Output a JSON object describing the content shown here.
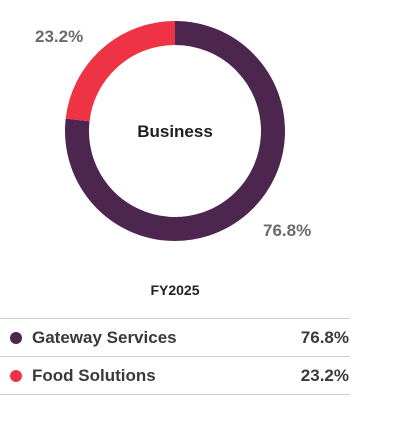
{
  "chart_data": {
    "type": "pie",
    "center_label": "Business",
    "caption": "FY2025",
    "series": [
      {
        "name": "Gateway Services",
        "value": 76.8,
        "label": "76.8%",
        "color": "#4d2650"
      },
      {
        "name": "Food Solutions",
        "value": 23.2,
        "label": "23.2%",
        "color": "#ee3344"
      }
    ],
    "legend_position": "bottom"
  }
}
